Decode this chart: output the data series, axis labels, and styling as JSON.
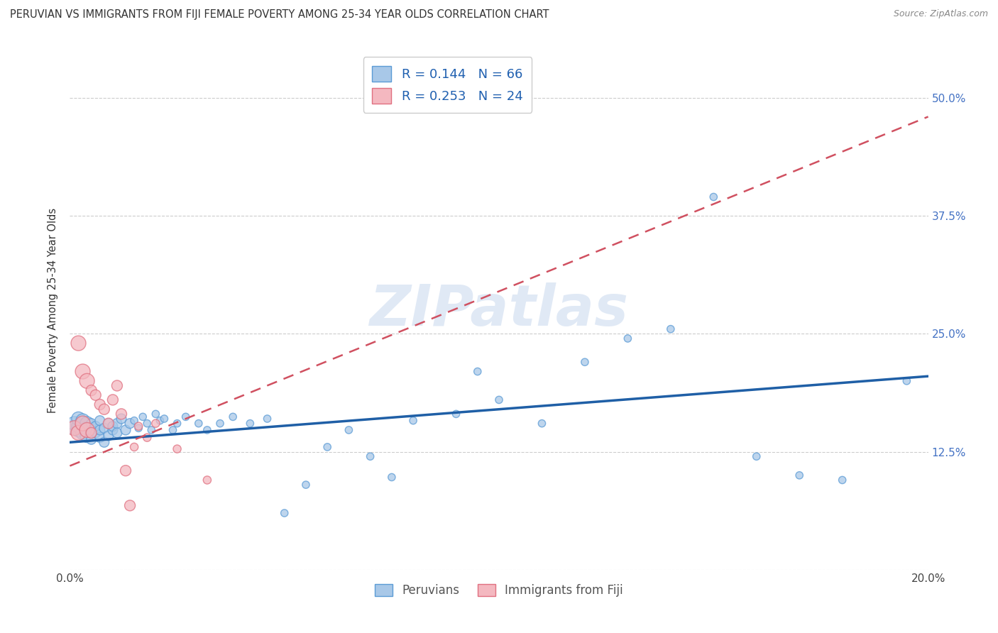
{
  "title": "PERUVIAN VS IMMIGRANTS FROM FIJI FEMALE POVERTY AMONG 25-34 YEAR OLDS CORRELATION CHART",
  "source": "Source: ZipAtlas.com",
  "ylabel": "Female Poverty Among 25-34 Year Olds",
  "xlim": [
    0.0,
    0.2
  ],
  "ylim": [
    0.0,
    0.55
  ],
  "grid_color": "#cccccc",
  "background": "#ffffff",
  "peruvian_color": "#a8c8e8",
  "fiji_color": "#f4b8c0",
  "peruvian_edge": "#5b9bd5",
  "fiji_edge": "#e07080",
  "trend_blue": "#1f5fa6",
  "trend_pink": "#d05060",
  "R_peruvian": 0.144,
  "N_peruvian": 66,
  "R_fiji": 0.253,
  "N_fiji": 24,
  "legend_label_peruvian": "Peruvians",
  "legend_label_fiji": "Immigrants from Fiji",
  "watermark": "ZIPatlas",
  "peruvian_x": [
    0.001,
    0.001,
    0.002,
    0.002,
    0.002,
    0.003,
    0.003,
    0.003,
    0.004,
    0.004,
    0.004,
    0.005,
    0.005,
    0.005,
    0.006,
    0.006,
    0.007,
    0.007,
    0.007,
    0.008,
    0.008,
    0.009,
    0.009,
    0.01,
    0.01,
    0.011,
    0.011,
    0.012,
    0.013,
    0.014,
    0.015,
    0.016,
    0.017,
    0.018,
    0.019,
    0.02,
    0.021,
    0.022,
    0.024,
    0.025,
    0.027,
    0.03,
    0.032,
    0.035,
    0.038,
    0.042,
    0.046,
    0.05,
    0.055,
    0.06,
    0.065,
    0.07,
    0.075,
    0.08,
    0.09,
    0.095,
    0.1,
    0.11,
    0.12,
    0.13,
    0.14,
    0.15,
    0.16,
    0.17,
    0.18,
    0.195
  ],
  "peruvian_y": [
    0.15,
    0.155,
    0.148,
    0.152,
    0.16,
    0.145,
    0.155,
    0.158,
    0.142,
    0.15,
    0.155,
    0.138,
    0.148,
    0.155,
    0.145,
    0.152,
    0.14,
    0.148,
    0.158,
    0.135,
    0.15,
    0.142,
    0.155,
    0.148,
    0.152,
    0.155,
    0.145,
    0.16,
    0.148,
    0.155,
    0.158,
    0.15,
    0.162,
    0.155,
    0.148,
    0.165,
    0.158,
    0.16,
    0.148,
    0.155,
    0.162,
    0.155,
    0.148,
    0.155,
    0.162,
    0.155,
    0.16,
    0.06,
    0.09,
    0.13,
    0.148,
    0.12,
    0.098,
    0.158,
    0.165,
    0.21,
    0.18,
    0.155,
    0.22,
    0.245,
    0.255,
    0.395,
    0.12,
    0.1,
    0.095,
    0.2
  ],
  "fiji_x": [
    0.001,
    0.002,
    0.002,
    0.003,
    0.003,
    0.004,
    0.004,
    0.005,
    0.005,
    0.006,
    0.007,
    0.008,
    0.009,
    0.01,
    0.011,
    0.012,
    0.013,
    0.014,
    0.015,
    0.016,
    0.018,
    0.02,
    0.025,
    0.032
  ],
  "fiji_y": [
    0.15,
    0.145,
    0.24,
    0.155,
    0.21,
    0.148,
    0.2,
    0.145,
    0.19,
    0.185,
    0.175,
    0.17,
    0.155,
    0.18,
    0.195,
    0.165,
    0.105,
    0.068,
    0.13,
    0.152,
    0.14,
    0.155,
    0.128,
    0.095
  ],
  "peru_trend_x0": 0.0,
  "peru_trend_y0": 0.135,
  "peru_trend_x1": 0.2,
  "peru_trend_y1": 0.205,
  "fiji_trend_x0": 0.0,
  "fiji_trend_y0": 0.11,
  "fiji_trend_x1": 0.2,
  "fiji_trend_y1": 0.48
}
